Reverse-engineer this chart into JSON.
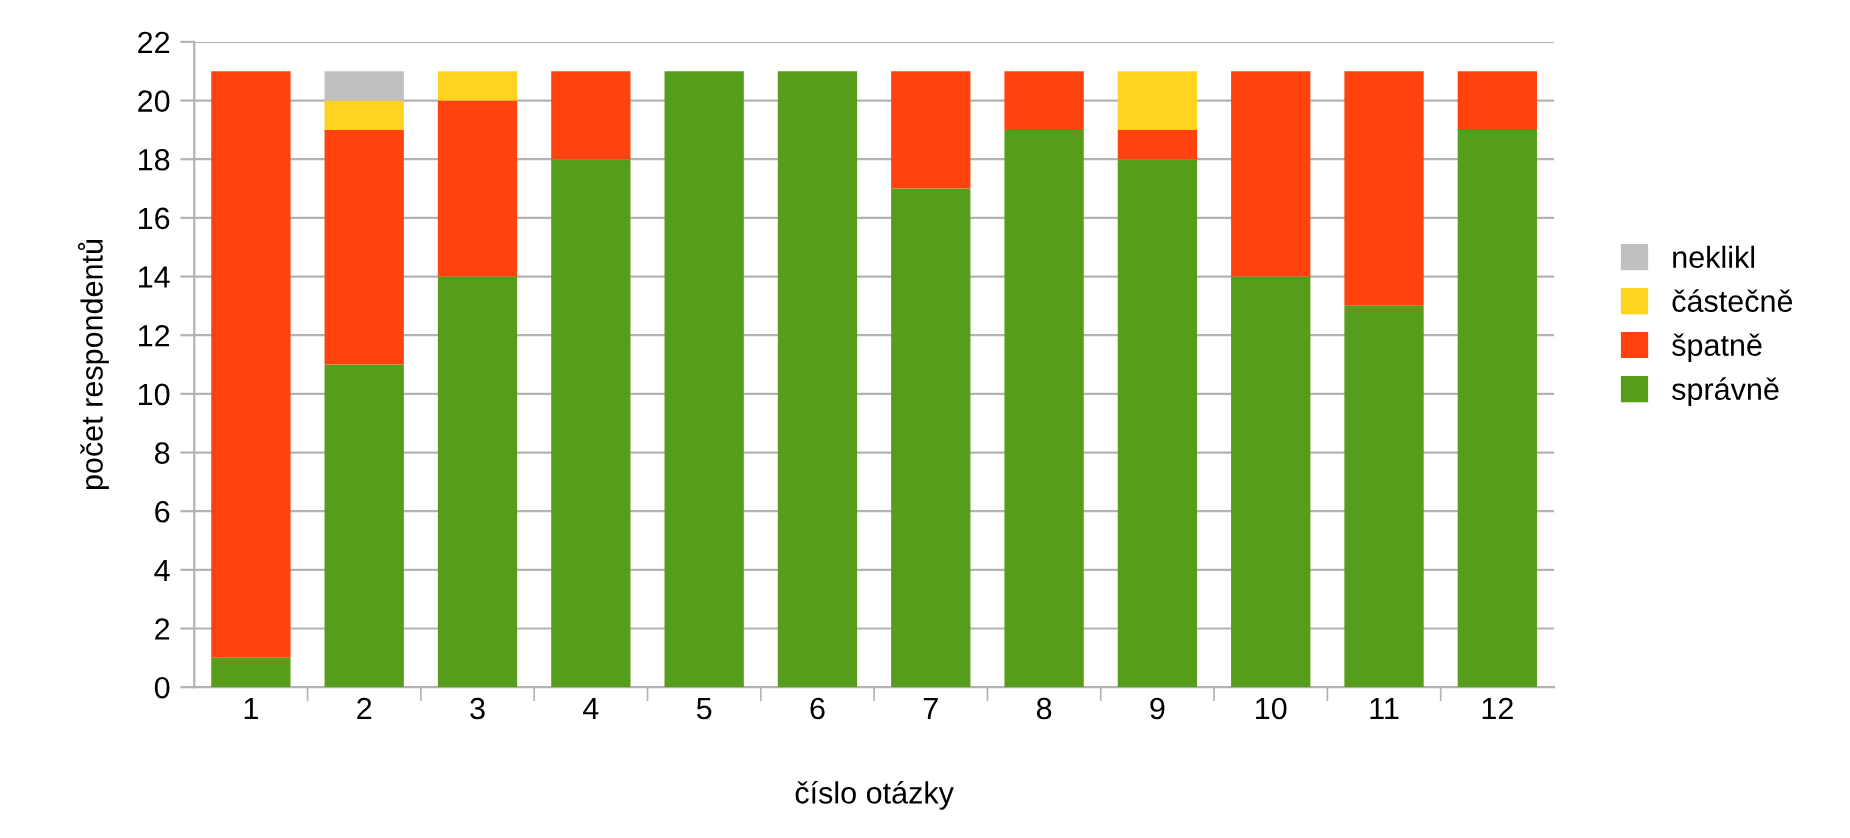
{
  "chart_data": {
    "type": "bar",
    "stacked": true,
    "xlabel": "číslo otázky",
    "ylabel": "počet respondentů",
    "categories": [
      "1",
      "2",
      "3",
      "4",
      "5",
      "6",
      "7",
      "8",
      "9",
      "10",
      "11",
      "12"
    ],
    "series": [
      {
        "name": "správně",
        "color": "#579d1c",
        "values": [
          1,
          11,
          14,
          18,
          21,
          21,
          17,
          19,
          18,
          14,
          13,
          19
        ]
      },
      {
        "name": "špatně",
        "color": "#ff420e",
        "values": [
          20,
          8,
          6,
          3,
          0,
          0,
          4,
          2,
          1,
          7,
          8,
          2
        ]
      },
      {
        "name": "částečně",
        "color": "#ffd320",
        "values": [
          0,
          1,
          1,
          0,
          0,
          0,
          0,
          0,
          2,
          0,
          0,
          0
        ]
      },
      {
        "name": "neklikl",
        "color": "#c0c0c0",
        "values": [
          0,
          1,
          0,
          0,
          0,
          0,
          0,
          0,
          0,
          0,
          0,
          0
        ]
      }
    ],
    "ylim": [
      0,
      22
    ],
    "yticks": [
      0,
      2,
      4,
      6,
      8,
      10,
      12,
      14,
      16,
      18,
      20,
      22
    ],
    "grid": "y",
    "legend": "right"
  }
}
